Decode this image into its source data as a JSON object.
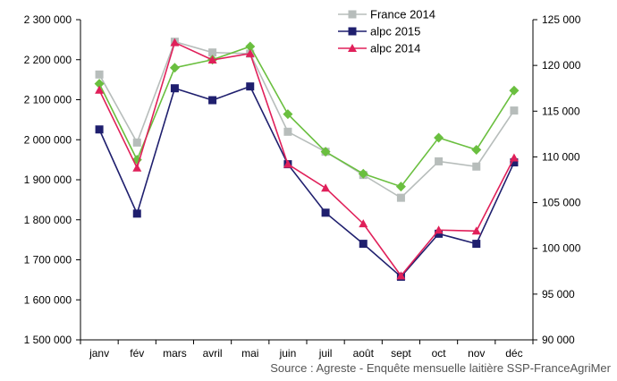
{
  "chart_data": {
    "type": "line",
    "categories": [
      "janv",
      "fév",
      "mars",
      "avril",
      "mai",
      "juin",
      "juil",
      "août",
      "sept",
      "oct",
      "nov",
      "déc"
    ],
    "y_left": {
      "ylim": [
        1500000,
        2300000
      ],
      "ticks": [
        "1 500 000",
        "1 600 000",
        "1 700 000",
        "1 800 000",
        "1 900 000",
        "2 000 000",
        "2 100 000",
        "2 200 000",
        "2 300 000"
      ]
    },
    "y_right": {
      "ylim": [
        90000,
        125000
      ],
      "ticks": [
        "90 000",
        "95 000",
        "100 000",
        "105 000",
        "110 000",
        "115 000",
        "120 000",
        "125 000"
      ]
    },
    "series": [
      {
        "name": "France 2014",
        "axis": "left",
        "color": "#b7bdbb",
        "marker": "square",
        "values": [
          2163000,
          1993000,
          2245000,
          2218000,
          2215000,
          2020000,
          1970000,
          1912000,
          1855000,
          1946000,
          1933000,
          2073000
        ]
      },
      {
        "name": "",
        "axis": "left",
        "color": "#6abf3f",
        "marker": "diamond",
        "values": [
          2140000,
          1950000,
          2180000,
          2200000,
          2233000,
          2064000,
          1970000,
          1915000,
          1883000,
          2005000,
          1975000,
          2123000
        ]
      },
      {
        "name": "alpc 2015",
        "axis": "right",
        "color": "#1f1f6e",
        "marker": "square",
        "values": [
          113000,
          103800,
          117500,
          116200,
          117700,
          109200,
          103900,
          100500,
          96900,
          101600,
          100500,
          109400
        ]
      },
      {
        "name": "alpc 2014",
        "axis": "right",
        "color": "#e0205a",
        "marker": "triangle",
        "values": [
          117300,
          108800,
          122500,
          120600,
          121300,
          109200,
          106600,
          102700,
          97000,
          102000,
          101900,
          109900
        ]
      }
    ],
    "legend": {
      "placement": "top-center"
    },
    "grid": false
  },
  "source_text": "Source : Agreste - Enquête mensuelle laitière SSP-FranceAgriMer"
}
